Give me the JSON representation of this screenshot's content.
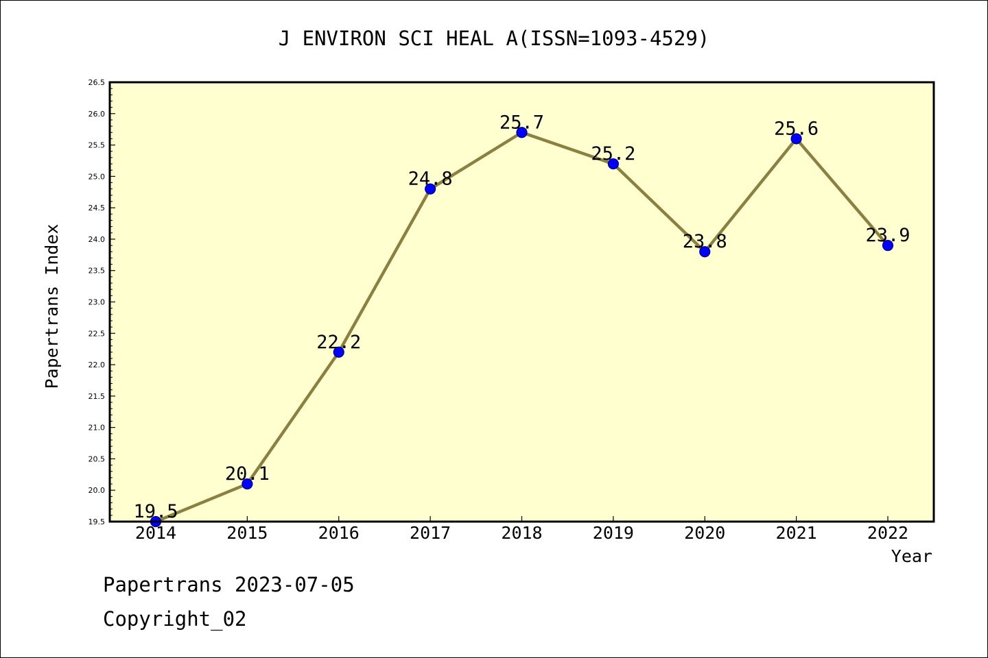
{
  "chart_data": {
    "type": "line",
    "title": "J ENVIRON SCI HEAL A(ISSN=1093-4529)",
    "xlabel": "Year",
    "ylabel": "Papertrans Index",
    "categories": [
      "2014",
      "2015",
      "2016",
      "2017",
      "2018",
      "2019",
      "2020",
      "2021",
      "2022"
    ],
    "values": [
      19.5,
      20.1,
      22.2,
      24.8,
      25.7,
      25.2,
      23.8,
      25.6,
      23.9
    ],
    "data_labels": [
      "19.5",
      "20.1",
      "22.2",
      "24.8",
      "25.7",
      "25.2",
      "23.8",
      "25.6",
      "23.9"
    ],
    "ylim": [
      19.5,
      26.5
    ],
    "y_ticks": [
      "19.5",
      "20.0",
      "20.5",
      "21.0",
      "21.5",
      "22.0",
      "22.5",
      "23.0",
      "23.5",
      "24.0",
      "24.5",
      "25.0",
      "25.5",
      "26.0",
      "26.5"
    ],
    "grid": false,
    "legend": "none",
    "colors": {
      "plot_background": "#ffffd0",
      "line": "#8b8040",
      "marker_fill": "#0000ff",
      "marker_edge": "#000080",
      "frame": "#000000"
    }
  },
  "footer": {
    "line1": "Papertrans 2023-07-05",
    "line2": "Copyright_02"
  }
}
